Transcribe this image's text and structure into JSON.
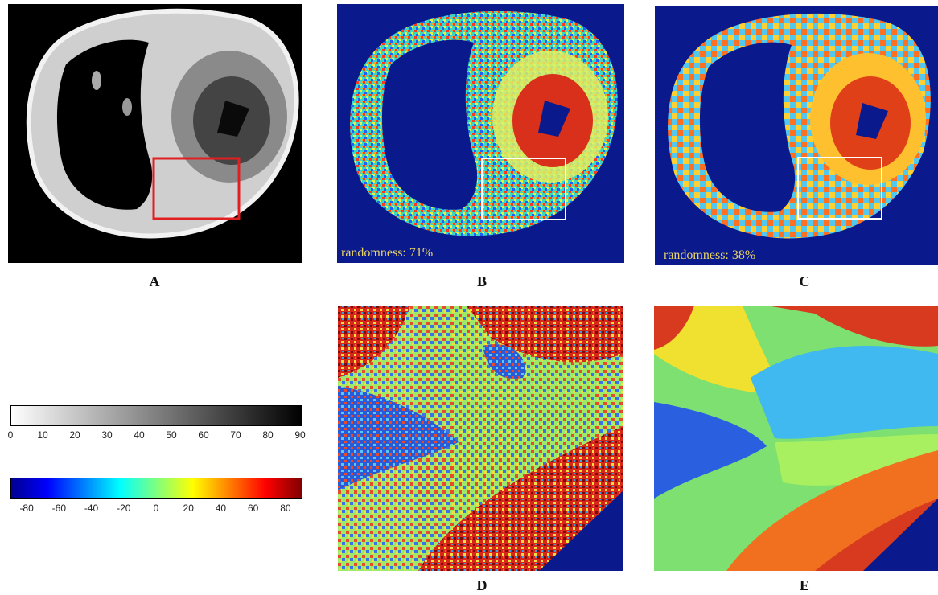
{
  "panels": {
    "a": {
      "letter": "A"
    },
    "b": {
      "letter": "B",
      "randomness": "randomness: 71%"
    },
    "c": {
      "letter": "C",
      "randomness": "randomness: 38%"
    },
    "d": {
      "letter": "D"
    },
    "e": {
      "letter": "E"
    }
  },
  "colorbars": {
    "gray": {
      "ticks": [
        "0",
        "10",
        "20",
        "30",
        "40",
        "50",
        "60",
        "70",
        "80",
        "90"
      ]
    },
    "jet": {
      "ticks": [
        "-80",
        "-60",
        "-40",
        "-20",
        "0",
        "20",
        "40",
        "60",
        "80"
      ]
    }
  },
  "colors": {
    "highlight_box_a": "#e02020",
    "highlight_box_bc": "#ffffff",
    "background_bc": "#0a1a8c",
    "randomness_text": "#e8d468"
  }
}
